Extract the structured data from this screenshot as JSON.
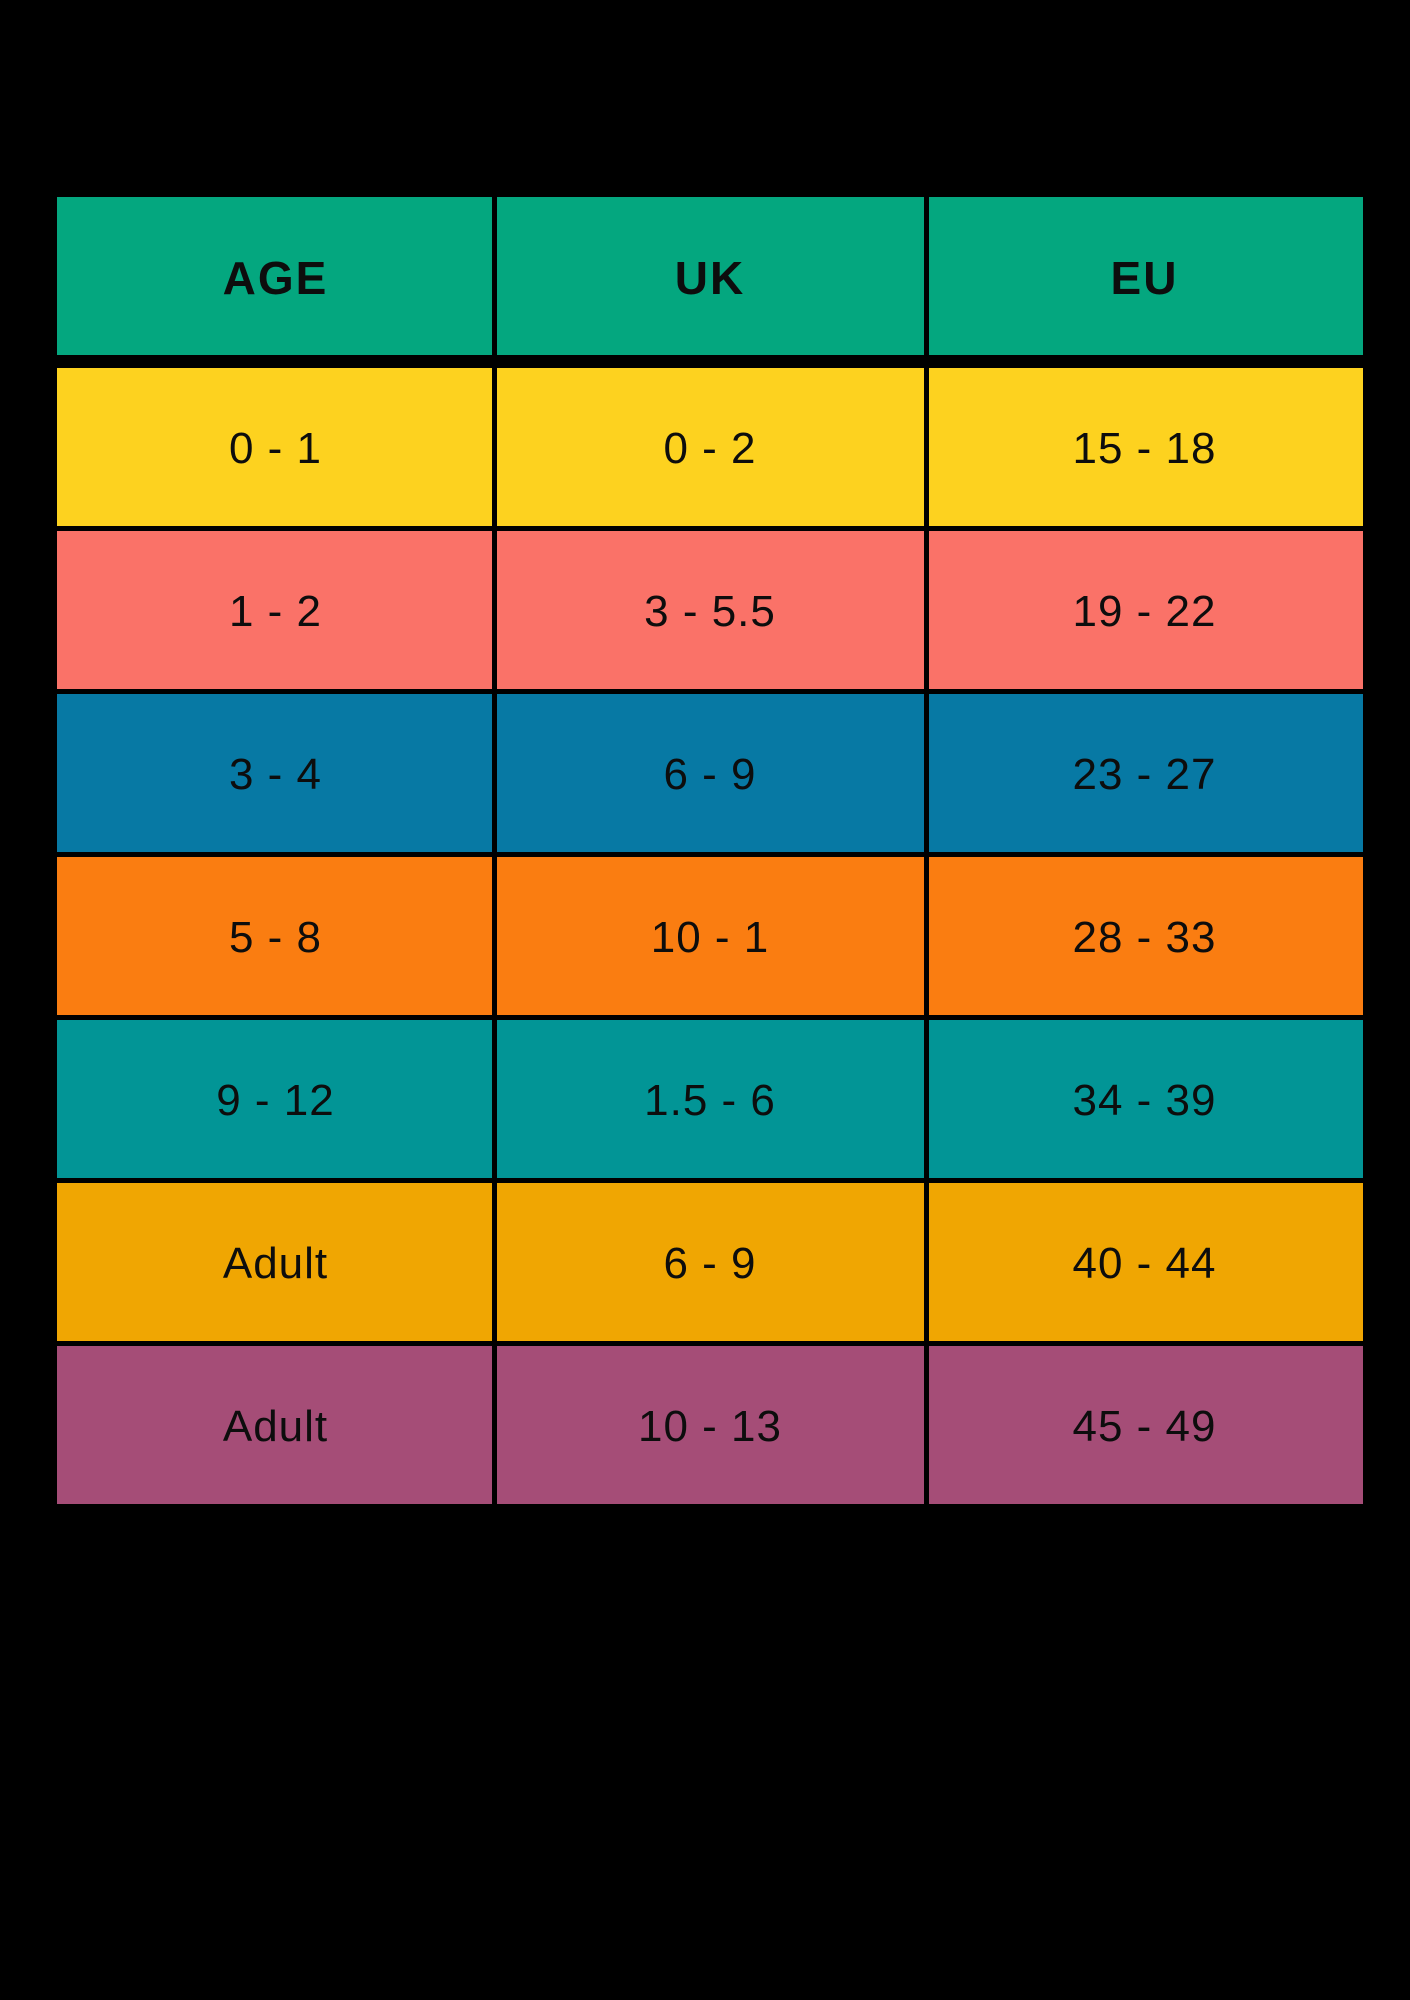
{
  "page": {
    "background": "#000000",
    "text_color": "#0d0d0d"
  },
  "chart_data": {
    "type": "table",
    "columns": [
      "AGE",
      "UK",
      "EU"
    ],
    "rows": [
      [
        "0 - 1",
        "0 - 2",
        "15 - 18"
      ],
      [
        "1 - 2",
        "3 - 5.5",
        "19 - 22"
      ],
      [
        "3 - 4",
        "6 - 9",
        "23 - 27"
      ],
      [
        "5 - 8",
        "10 - 1",
        "28 - 33"
      ],
      [
        "9 - 12",
        "1.5 - 6",
        "34 - 39"
      ],
      [
        "Adult",
        "6 - 9",
        "40 - 44"
      ],
      [
        "Adult",
        "10 - 13",
        "45 - 49"
      ]
    ],
    "header_color": "#04a77f",
    "row_colors": [
      "#fdd21f",
      "#fa7268",
      "#0779a4",
      "#fa7d11",
      "#029596",
      "#f0a602",
      "#a54d77"
    ],
    "grid": "off",
    "legend": "none"
  }
}
